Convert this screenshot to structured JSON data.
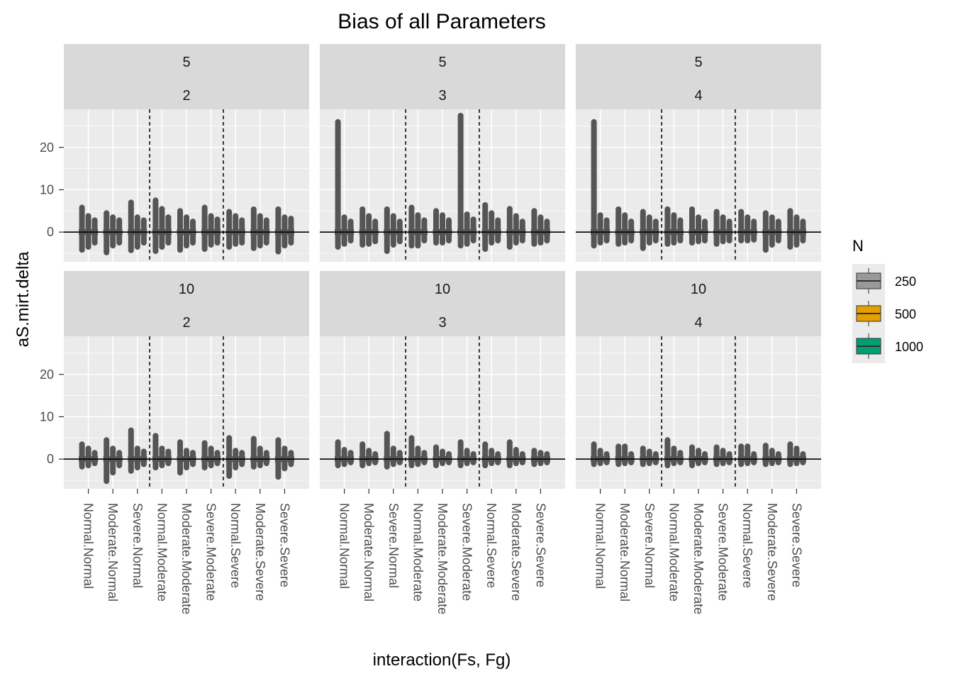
{
  "chart_data": {
    "type": "boxplot",
    "title": "Bias of all Parameters",
    "xlabel": "interaction(Fs, Fg)",
    "ylabel": "aS.mirt.delta",
    "ylim": [
      -7,
      29
    ],
    "yticks": [
      0,
      10,
      20
    ],
    "grid": true,
    "hline": 0,
    "categories": [
      "Normal.Normal",
      "Moderate.Normal",
      "Severe.Normal",
      "Normal.Moderate",
      "Moderate.Moderate",
      "Severe.Moderate",
      "Normal.Severe",
      "Moderate.Severe",
      "Severe.Severe"
    ],
    "group_dividers_after": [
      3,
      6
    ],
    "legend": {
      "title": "N",
      "position": "right",
      "entries": [
        {
          "label": "250",
          "color": "#999999"
        },
        {
          "label": "500",
          "color": "#E69F00"
        },
        {
          "label": "1000",
          "color": "#009E73"
        }
      ]
    },
    "panels": [
      {
        "row_label": "5",
        "col_label": "2",
        "series": [
          {
            "name": "250",
            "max": [
              5.8,
              4.5,
              7.0,
              7.5,
              5.0,
              5.8,
              4.8,
              5.4,
              5.4
            ],
            "min": [
              -4.2,
              -4.8,
              -4.3,
              -4.5,
              -4.2,
              -4.0,
              -3.5,
              -3.8,
              -4.6
            ]
          },
          {
            "name": "500",
            "max": [
              3.8,
              3.5,
              3.5,
              5.5,
              3.5,
              3.8,
              3.8,
              3.8,
              3.5
            ],
            "min": [
              -3.5,
              -3.2,
              -3.5,
              -3.5,
              -3.2,
              -3.0,
              -2.8,
              -3.2,
              -3.2
            ]
          },
          {
            "name": "1000",
            "max": [
              2.8,
              2.8,
              2.8,
              3.5,
              2.5,
              3.0,
              2.8,
              2.8,
              3.2
            ],
            "min": [
              -2.5,
              -2.5,
              -2.5,
              -2.5,
              -2.5,
              -2.5,
              -2.5,
              -2.5,
              -2.5
            ]
          }
        ]
      },
      {
        "row_label": "5",
        "col_label": "3",
        "series": [
          {
            "name": "250",
            "max": [
              26.0,
              5.4,
              5.4,
              5.8,
              5.0,
              27.5,
              6.4,
              5.5,
              5.0
            ],
            "min": [
              -3.5,
              -3.0,
              -4.5,
              -3.2,
              -2.5,
              -3.2,
              -4.0,
              -3.5,
              -2.8
            ]
          },
          {
            "name": "500",
            "max": [
              3.5,
              3.8,
              3.8,
              4.0,
              4.0,
              4.2,
              4.5,
              3.8,
              3.5
            ],
            "min": [
              -2.8,
              -2.8,
              -3.0,
              -3.2,
              -2.5,
              -2.8,
              -2.5,
              -2.5,
              -2.5
            ]
          },
          {
            "name": "1000",
            "max": [
              2.5,
              2.5,
              2.5,
              2.8,
              2.8,
              3.0,
              2.8,
              2.5,
              2.5
            ],
            "min": [
              -2.0,
              -2.2,
              -2.2,
              -2.0,
              -2.0,
              -2.0,
              -2.0,
              -2.0,
              -2.0
            ]
          }
        ]
      },
      {
        "row_label": "5",
        "col_label": "4",
        "series": [
          {
            "name": "250",
            "max": [
              26.0,
              5.4,
              4.8,
              5.4,
              5.4,
              4.8,
              4.8,
              4.5,
              5.0
            ],
            "min": [
              -3.2,
              -2.8,
              -3.8,
              -2.8,
              -2.5,
              -2.8,
              -2.0,
              -4.2,
              -3.5
            ]
          },
          {
            "name": "500",
            "max": [
              4.0,
              4.0,
              3.5,
              4.0,
              3.5,
              3.5,
              3.5,
              3.5,
              3.5
            ],
            "min": [
              -2.5,
              -2.5,
              -2.5,
              -2.5,
              -2.2,
              -2.2,
              -2.0,
              -3.0,
              -3.0
            ]
          },
          {
            "name": "1000",
            "max": [
              2.8,
              2.5,
              2.5,
              2.8,
              2.5,
              2.5,
              2.5,
              2.5,
              2.5
            ],
            "min": [
              -2.0,
              -2.0,
              -2.0,
              -2.0,
              -2.0,
              -2.0,
              -1.8,
              -2.0,
              -2.0
            ]
          }
        ]
      },
      {
        "row_label": "10",
        "col_label": "2",
        "series": [
          {
            "name": "250",
            "max": [
              3.5,
              4.5,
              6.8,
              5.5,
              4.0,
              3.8,
              5.0,
              4.8,
              4.5
            ],
            "min": [
              -1.8,
              -5.2,
              -2.8,
              -2.0,
              -3.2,
              -2.0,
              -4.0,
              -1.8,
              -4.2
            ]
          },
          {
            "name": "500",
            "max": [
              2.5,
              2.5,
              2.5,
              2.5,
              2.0,
              2.5,
              2.0,
              2.5,
              2.5
            ],
            "min": [
              -1.5,
              -3.2,
              -2.0,
              -1.5,
              -2.0,
              -1.5,
              -2.0,
              -1.5,
              -2.2
            ]
          },
          {
            "name": "1000",
            "max": [
              1.5,
              1.5,
              1.8,
              1.8,
              1.5,
              1.5,
              1.5,
              1.5,
              1.5
            ],
            "min": [
              -1.0,
              -1.5,
              -1.2,
              -1.0,
              -1.2,
              -1.0,
              -1.2,
              -1.0,
              -1.2
            ]
          }
        ]
      },
      {
        "row_label": "10",
        "col_label": "3",
        "series": [
          {
            "name": "250",
            "max": [
              4.0,
              3.5,
              6.0,
              5.0,
              2.8,
              4.0,
              3.5,
              4.0,
              2.0
            ],
            "min": [
              -1.5,
              -1.5,
              -1.8,
              -1.5,
              -1.5,
              -1.5,
              -1.5,
              -1.5,
              -1.2
            ]
          },
          {
            "name": "500",
            "max": [
              2.2,
              2.0,
              2.5,
              2.5,
              1.8,
              2.0,
              2.0,
              2.2,
              1.5
            ],
            "min": [
              -1.2,
              -1.0,
              -1.2,
              -1.2,
              -1.0,
              -1.0,
              -1.0,
              -1.0,
              -1.0
            ]
          },
          {
            "name": "1000",
            "max": [
              1.5,
              1.2,
              1.5,
              1.5,
              1.2,
              1.2,
              1.2,
              1.2,
              1.2
            ],
            "min": [
              -0.8,
              -0.8,
              -0.8,
              -0.8,
              -0.8,
              -0.8,
              -0.8,
              -0.8,
              -0.8
            ]
          }
        ]
      },
      {
        "row_label": "10",
        "col_label": "4",
        "series": [
          {
            "name": "250",
            "max": [
              3.5,
              3.0,
              2.5,
              4.5,
              2.8,
              2.8,
              3.0,
              3.2,
              3.5
            ],
            "min": [
              -1.2,
              -1.2,
              -1.2,
              -1.5,
              -1.5,
              -1.2,
              -1.2,
              -1.2,
              -1.2
            ]
          },
          {
            "name": "500",
            "max": [
              2.0,
              3.0,
              1.8,
              2.5,
              2.0,
              2.0,
              3.0,
              2.0,
              2.5
            ],
            "min": [
              -1.0,
              -1.0,
              -1.0,
              -1.0,
              -1.0,
              -1.0,
              -1.0,
              -1.0,
              -1.0
            ]
          },
          {
            "name": "1000",
            "max": [
              1.2,
              1.2,
              1.2,
              1.5,
              1.2,
              1.2,
              1.2,
              1.2,
              1.2
            ],
            "min": [
              -0.8,
              -0.8,
              -0.8,
              -0.8,
              -0.8,
              -0.8,
              -0.8,
              -0.8,
              -0.8
            ]
          }
        ]
      }
    ]
  }
}
